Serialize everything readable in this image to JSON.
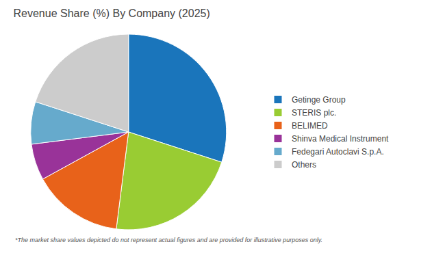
{
  "chart_data": {
    "type": "pie",
    "title": "Revenue Share (%) By Company (2025)",
    "categories": [
      "Getinge Group",
      "STERIS plc.",
      "BELIMED",
      "Shinva Medical Instrument",
      "Fedegari Autoclavi S.p.A.",
      "Others"
    ],
    "values": [
      30,
      22,
      15,
      6,
      7,
      20
    ],
    "colors": [
      "#1a75bb",
      "#99cc33",
      "#e8621a",
      "#993399",
      "#66aacc",
      "#cccccc"
    ],
    "legend": "right",
    "annotations": [
      "*The market share values depicted do not represent actual figures and are provided for illustrative purposes only."
    ]
  }
}
